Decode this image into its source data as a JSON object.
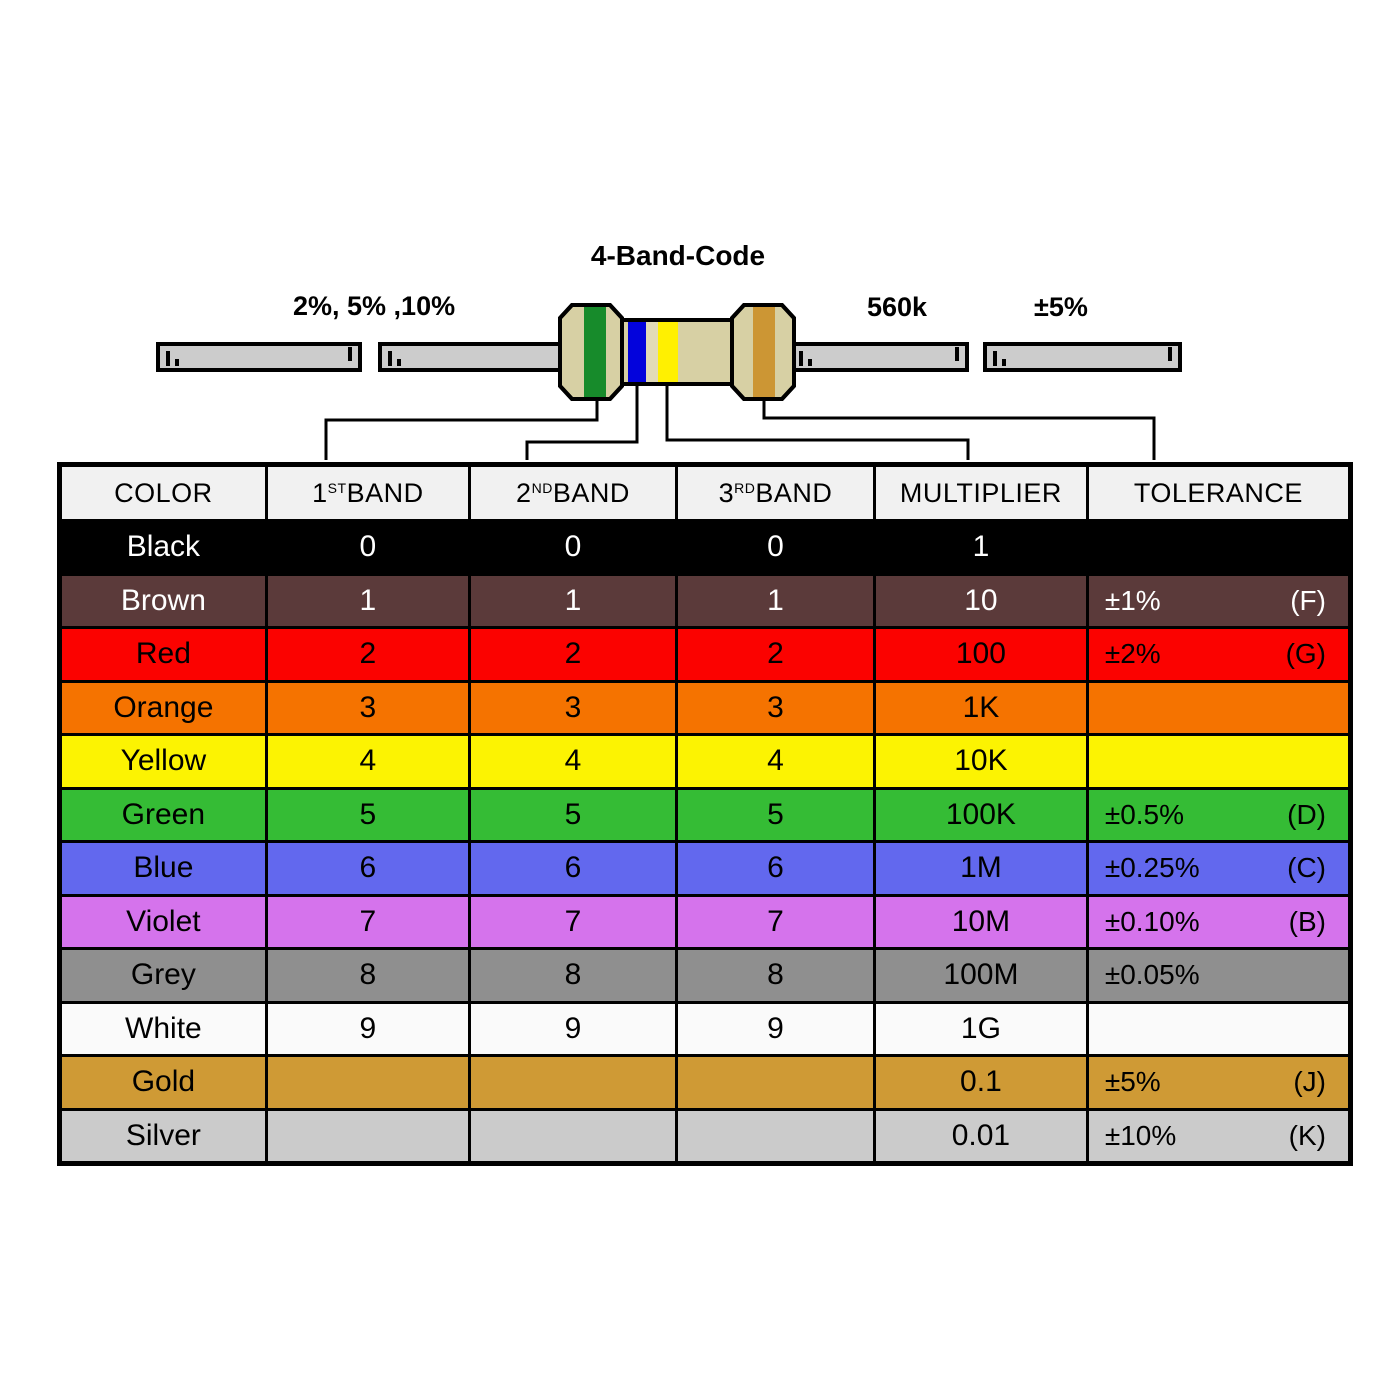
{
  "title": "4-Band-Code",
  "annotations": {
    "tolerance_options": "2%, 5% ,10%",
    "resistance_value": "560k",
    "tolerance_value": "±5%"
  },
  "resistor": {
    "body_color": "#D7D0A4",
    "body_light": "#E2DBB6",
    "lead_color": "#CCCCCC",
    "outline_color": "#000000",
    "bands": {
      "band1_green": "#178B2B",
      "band2_blue": "#0303DC",
      "band3_yellow": "#FFF001",
      "band4_gold": "#CC9634"
    }
  },
  "table": {
    "headers": [
      {
        "key": "color",
        "text": "COLOR",
        "sup": "",
        "rest": ""
      },
      {
        "key": "band1",
        "text": "1",
        "sup": "ST",
        "rest": " BAND"
      },
      {
        "key": "band2",
        "text": "2",
        "sup": "ND",
        "rest": " BAND"
      },
      {
        "key": "band3",
        "text": "3",
        "sup": "RD",
        "rest": " BAND"
      },
      {
        "key": "multiplier",
        "text": "MULTIPLIER",
        "sup": "",
        "rest": ""
      },
      {
        "key": "tolerance",
        "text": "TOLERANCE",
        "sup": "",
        "rest": ""
      }
    ],
    "rows": [
      {
        "id": "black",
        "name": "Black",
        "bg": "#000000",
        "fg": "#FFFFFF",
        "band1": "0",
        "band2": "0",
        "band3": "0",
        "multiplier": "1",
        "tolerance": "",
        "tol_code": ""
      },
      {
        "id": "brown",
        "name": "Brown",
        "bg": "#5B3A3A",
        "fg": "#FFFFFF",
        "band1": "1",
        "band2": "1",
        "band3": "1",
        "multiplier": "10",
        "tolerance": "±1%",
        "tol_code": "(F)"
      },
      {
        "id": "red",
        "name": "Red",
        "bg": "#FB0200",
        "fg": "#000000",
        "band1": "2",
        "band2": "2",
        "band3": "2",
        "multiplier": "100",
        "tolerance": "±2%",
        "tol_code": "(G)"
      },
      {
        "id": "orange",
        "name": "Orange",
        "bg": "#F57300",
        "fg": "#000000",
        "band1": "3",
        "band2": "3",
        "band3": "3",
        "multiplier": "1K",
        "tolerance": "",
        "tol_code": ""
      },
      {
        "id": "yellow",
        "name": "Yellow",
        "bg": "#FCF302",
        "fg": "#000000",
        "band1": "4",
        "band2": "4",
        "band3": "4",
        "multiplier": "10K",
        "tolerance": "",
        "tol_code": ""
      },
      {
        "id": "green",
        "name": "Green",
        "bg": "#35BC35",
        "fg": "#000000",
        "band1": "5",
        "band2": "5",
        "band3": "5",
        "multiplier": "100K",
        "tolerance": "±0.5%",
        "tol_code": "(D)"
      },
      {
        "id": "blue",
        "name": "Blue",
        "bg": "#6268EE",
        "fg": "#000000",
        "band1": "6",
        "band2": "6",
        "band3": "6",
        "multiplier": "1M",
        "tolerance": "±0.25%",
        "tol_code": "(C)"
      },
      {
        "id": "violet",
        "name": "Violet",
        "bg": "#D573EC",
        "fg": "#000000",
        "band1": "7",
        "band2": "7",
        "band3": "7",
        "multiplier": "10M",
        "tolerance": "±0.10%",
        "tol_code": "(B)"
      },
      {
        "id": "grey",
        "name": "Grey",
        "bg": "#8F8F8F",
        "fg": "#000000",
        "band1": "8",
        "band2": "8",
        "band3": "8",
        "multiplier": "100M",
        "tolerance": "±0.05%",
        "tol_code": ""
      },
      {
        "id": "white",
        "name": "White",
        "bg": "#FAFAFA",
        "fg": "#000000",
        "band1": "9",
        "band2": "9",
        "band3": "9",
        "multiplier": "1G",
        "tolerance": "",
        "tol_code": ""
      },
      {
        "id": "gold",
        "name": "Gold",
        "bg": "#CF9A35",
        "fg": "#000000",
        "band1": "",
        "band2": "",
        "band3": "",
        "multiplier": "0.1",
        "tolerance": "±5%",
        "tol_code": "(J)"
      },
      {
        "id": "silver",
        "name": "Silver",
        "bg": "#CBCBCB",
        "fg": "#000000",
        "band1": "",
        "band2": "",
        "band3": "",
        "multiplier": "0.01",
        "tolerance": "±10%",
        "tol_code": "(K)"
      }
    ]
  }
}
